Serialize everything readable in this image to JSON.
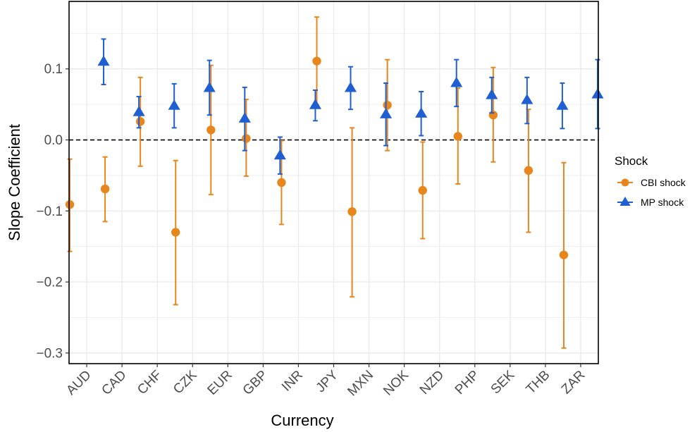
{
  "chart_data": {
    "type": "scatter",
    "subtype": "point-range",
    "xlabel": "Currency",
    "ylabel": "Slope Coefficient",
    "categories": [
      "AUD",
      "CAD",
      "CHF",
      "CZK",
      "EUR",
      "GBP",
      "INR",
      "JPY",
      "MXN",
      "NOK",
      "NZD",
      "PHP",
      "SEK",
      "THB",
      "ZAR"
    ],
    "ylim": [
      -0.315,
      0.195
    ],
    "yticks": [
      0.1,
      0.0,
      -0.1,
      -0.2,
      -0.3
    ],
    "ytick_labels": [
      "0.1",
      "0.0",
      "−0.1",
      "−0.2",
      "−0.3"
    ],
    "reference_line": {
      "y": 0,
      "style": "dashed"
    },
    "grid": true,
    "legend": {
      "title": "Shock",
      "position": "right"
    },
    "series": [
      {
        "name": "CBI shock",
        "color": "#E8861E",
        "marker": "circle",
        "values": [
          -0.091,
          -0.069,
          0.026,
          -0.13,
          0.014,
          0.002,
          -0.06,
          0.111,
          -0.101,
          0.049,
          -0.071,
          0.005,
          0.035,
          -0.043,
          -0.162
        ],
        "lower": [
          -0.157,
          -0.115,
          -0.037,
          -0.232,
          -0.077,
          -0.051,
          -0.119,
          0.049,
          -0.221,
          -0.015,
          -0.139,
          -0.062,
          -0.031,
          -0.13,
          -0.293
        ],
        "upper": [
          -0.027,
          -0.024,
          0.088,
          -0.029,
          0.105,
          0.057,
          -0.001,
          0.173,
          0.017,
          0.113,
          -0.003,
          0.073,
          0.102,
          0.043,
          -0.032
        ]
      },
      {
        "name": "MP shock",
        "color": "#1F5FD1",
        "marker": "triangle",
        "values": [
          0.11,
          0.039,
          0.048,
          0.073,
          0.03,
          -0.022,
          0.049,
          0.073,
          0.036,
          0.037,
          0.08,
          0.063,
          0.056,
          0.048,
          0.064
        ],
        "lower": [
          0.078,
          0.017,
          0.017,
          0.035,
          -0.015,
          -0.048,
          0.027,
          0.043,
          -0.008,
          0.006,
          0.047,
          0.038,
          0.023,
          0.016,
          0.016
        ],
        "upper": [
          0.142,
          0.061,
          0.079,
          0.112,
          0.074,
          0.004,
          0.07,
          0.103,
          0.08,
          0.068,
          0.113,
          0.088,
          0.088,
          0.08,
          0.113
        ]
      }
    ]
  }
}
